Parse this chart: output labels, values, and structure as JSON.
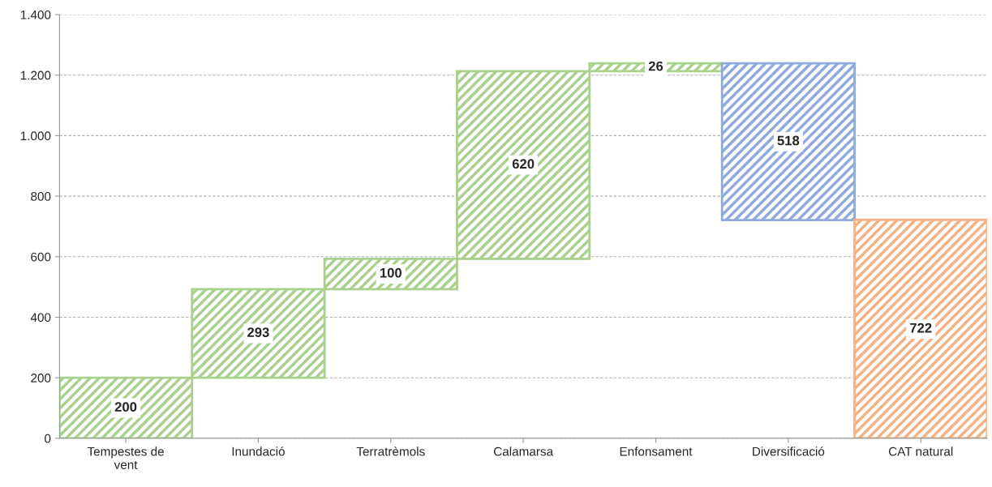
{
  "chart_data": {
    "type": "bar",
    "categories": [
      "Tempestes de\nvent",
      "Inundació",
      "Terratrèmols",
      "Calamarsa",
      "Enfonsament",
      "Diversificació",
      "CAT natural"
    ],
    "values": [
      200,
      293,
      100,
      620,
      26,
      518,
      722
    ],
    "base": [
      0,
      200,
      493,
      593,
      1213,
      721,
      0
    ],
    "colors": [
      "#a9d18e",
      "#a9d18e",
      "#a9d18e",
      "#a9d18e",
      "#a9d18e",
      "#8faadc",
      "#f4b183"
    ],
    "data_labels": true,
    "ylim": [
      0,
      1400
    ],
    "yticks": [
      0,
      200,
      400,
      600,
      800,
      {
        "value": 1000,
        "label": "1.000"
      },
      {
        "value": 1200,
        "label": "1.200"
      },
      {
        "value": 1400,
        "label": "1.400"
      }
    ],
    "grid": "y"
  }
}
